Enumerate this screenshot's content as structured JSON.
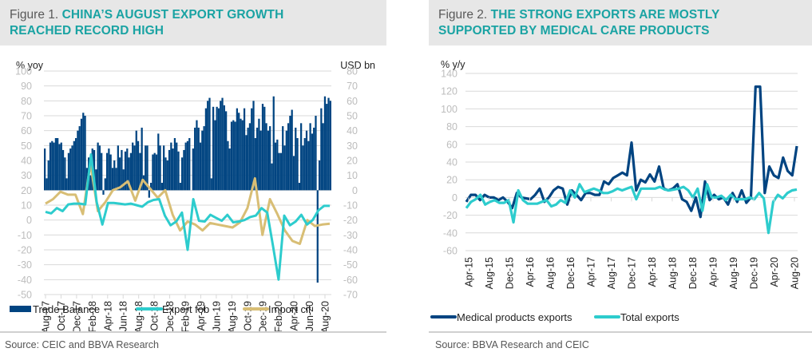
{
  "figures": [
    {
      "figure_label": "Figure 1.",
      "title": "CHINA’S AUGUST EXPORT GROWTH REACHED RECORD HIGH",
      "title_lines": [
        "CHINA’S AUGUST EXPORT GROWTH",
        "REACHED RECORD HIGH"
      ],
      "source": "Source: CEIC and BBVA Research"
    },
    {
      "figure_label": "Figure 2.",
      "title": "THE STRONG EXPORTS ARE MOSTLY SUPPORTED BY MEDICAL CARE PRODUCTS",
      "title_lines": [
        "THE STRONG EXPORTS ARE MOSTLY",
        "SUPPORTED BY MEDICAL CARE PRODUCTS"
      ],
      "source": "Source: BBVA Research and CEIC"
    }
  ],
  "colors": {
    "title_accent": "#1aa3a3",
    "navy": "#004481",
    "teal": "#2dcccd",
    "sand": "#d8be75",
    "grid": "#d9d9d9",
    "tick_label": "#bdbdbd",
    "axis_title": "#222222"
  },
  "chart_data": [
    {
      "type": "bar+line",
      "title": "Figure 1. CHINA’S AUGUST EXPORT GROWTH REACHED RECORD HIGH",
      "ylabel_left": "% yoy",
      "ylabel_right": "USD bn",
      "ylim_left": [
        -50,
        100
      ],
      "yticks_left": [
        100,
        90,
        80,
        70,
        60,
        50,
        40,
        30,
        20,
        10,
        0,
        -10,
        -20,
        -30,
        -40,
        -50
      ],
      "ylim_right": [
        -70,
        80
      ],
      "yticks_right": [
        80,
        70,
        60,
        50,
        40,
        30,
        20,
        10,
        0,
        -10,
        -20,
        -30,
        -40,
        -50,
        -60,
        -70
      ],
      "xtick_labels": [
        "Aug-17",
        "Oct-17",
        "Dec-17",
        "Feb-18",
        "Apr-18",
        "Jun-18",
        "Aug-18",
        "Oct-18",
        "Dec-18",
        "Feb-19",
        "Apr-19",
        "Jun-19",
        "Aug-19",
        "Oct-19",
        "Dec-19",
        "Feb-20",
        "Apr-20",
        "Jun-20",
        "Aug-20"
      ],
      "grid": true,
      "legend_position": "bottom",
      "legend": [
        "Trade Balance",
        "Export fob",
        "Import cif"
      ],
      "series": [
        {
          "name": "Trade Balance",
          "axis": "right",
          "kind": "bar",
          "values": [
            28,
            8,
            20,
            32,
            33,
            32,
            35,
            35,
            31,
            32,
            27,
            22,
            8,
            25,
            28,
            30,
            33,
            35,
            40,
            43,
            48,
            52,
            50,
            15,
            22,
            10,
            28,
            27,
            14,
            32,
            30,
            25,
            -3,
            8,
            25,
            28,
            24,
            15,
            20,
            15,
            30,
            22,
            27,
            14,
            26,
            28,
            22,
            25,
            32,
            30,
            40,
            33,
            25,
            42,
            10,
            30,
            30,
            -5,
            5,
            24,
            25,
            24,
            38,
            30,
            5,
            30,
            22,
            20,
            27,
            32,
            28,
            35,
            32,
            26,
            5,
            22,
            27,
            32,
            33,
            35,
            0,
            28,
            42,
            47,
            42,
            32,
            40,
            43,
            55,
            60,
            62,
            8,
            56,
            47,
            56,
            55,
            60,
            62,
            57,
            53,
            33,
            28,
            46,
            47,
            46,
            55,
            52,
            48,
            47,
            55,
            37,
            42,
            45,
            55,
            60,
            35,
            42,
            48,
            40,
            58,
            56,
            45,
            40,
            43,
            18,
            63,
            32,
            34,
            25,
            25,
            43,
            30,
            40,
            45,
            50,
            54,
            23,
            42,
            35,
            5,
            45,
            30,
            35,
            40,
            33,
            45,
            38,
            42,
            50,
            -62,
            20,
            55,
            45,
            63,
            58,
            62,
            60
          ]
        },
        {
          "name": "Export fob",
          "axis": "left",
          "kind": "line",
          "values": [
            5.5,
            4.5,
            8,
            6,
            10.5,
            11,
            11,
            10.5,
            44,
            12,
            -3,
            11.5,
            11.5,
            11,
            10.5,
            11,
            10,
            9,
            12,
            13.5,
            14,
            3,
            -3.5,
            -1,
            5,
            -20,
            14,
            -0.5,
            -1,
            3.5,
            1.5,
            -0.5,
            3.5,
            -1.5,
            -1,
            0,
            2,
            3,
            8,
            5,
            -17,
            -40,
            3,
            -3.5,
            -1,
            3.5,
            -3,
            0,
            6.5,
            9.5,
            9.5
          ]
        },
        {
          "name": "Import cif",
          "axis": "left",
          "kind": "line",
          "values": [
            11,
            14,
            19,
            17,
            17,
            4,
            38,
            6,
            12,
            20,
            22,
            26,
            13,
            27,
            21,
            15,
            20,
            3.5,
            -7,
            -1,
            -3,
            -7,
            -2,
            -3,
            -4,
            -5,
            -1.5,
            8,
            28,
            -10,
            14,
            4,
            -7,
            -14,
            -16,
            0,
            -4,
            -3,
            -2.5
          ]
        }
      ]
    },
    {
      "type": "line",
      "title": "Figure 2. THE STRONG EXPORTS ARE MOSTLY SUPPORTED BY MEDICAL CARE PRODUCTS",
      "ylabel": "% y/y",
      "ylim": [
        -60,
        140
      ],
      "yticks": [
        140,
        120,
        100,
        80,
        60,
        40,
        20,
        0,
        -20,
        -40,
        -60
      ],
      "xtick_labels": [
        "Apr-15",
        "Aug-15",
        "Dec-15",
        "Apr-16",
        "Aug-16",
        "Dec-16",
        "Apr-17",
        "Aug-17",
        "Dec-17",
        "Apr-18",
        "Aug-18",
        "Dec-18",
        "Apr-19",
        "Aug-19",
        "Dec-19",
        "Apr-20",
        "Aug-20"
      ],
      "grid": true,
      "legend_position": "bottom",
      "legend": [
        "Medical products exports",
        "Total exports"
      ],
      "series": [
        {
          "name": "Medical products exports",
          "values": [
            -5,
            3,
            3,
            -3,
            3,
            0,
            0,
            -3,
            0,
            -5,
            -12,
            5,
            0,
            -1,
            -2,
            3,
            10,
            -5,
            0,
            8,
            12,
            10,
            -8,
            8,
            3,
            -3,
            5,
            5,
            3,
            3,
            18,
            15,
            22,
            25,
            28,
            25,
            62,
            8,
            20,
            17,
            26,
            18,
            35,
            10,
            8,
            10,
            15,
            -2,
            -5,
            -15,
            0,
            -22,
            18,
            -3,
            3,
            -2,
            0,
            -8,
            5,
            -5,
            8,
            -6,
            0,
            125,
            125,
            5,
            35,
            25,
            22,
            45,
            30,
            25,
            58
          ]
        },
        {
          "name": "Total exports",
          "values": [
            -12,
            -5,
            -2,
            3,
            -8,
            -5,
            -3,
            -6,
            -6,
            -3,
            -28,
            8,
            -3,
            -7,
            -7,
            -7,
            -5,
            -3,
            -10,
            -8,
            -3,
            -6,
            8,
            0,
            15,
            6,
            8,
            10,
            8,
            5,
            5,
            7,
            10,
            8,
            10,
            12,
            -2,
            10,
            10,
            10,
            10,
            12,
            9,
            8,
            9,
            10,
            12,
            8,
            0,
            10,
            -15,
            15,
            0,
            0,
            2,
            -3,
            3,
            -2,
            -2,
            -2,
            0,
            -2,
            5,
            -1,
            -40,
            -5,
            3,
            -1,
            5,
            8,
            9
          ]
        }
      ]
    }
  ]
}
